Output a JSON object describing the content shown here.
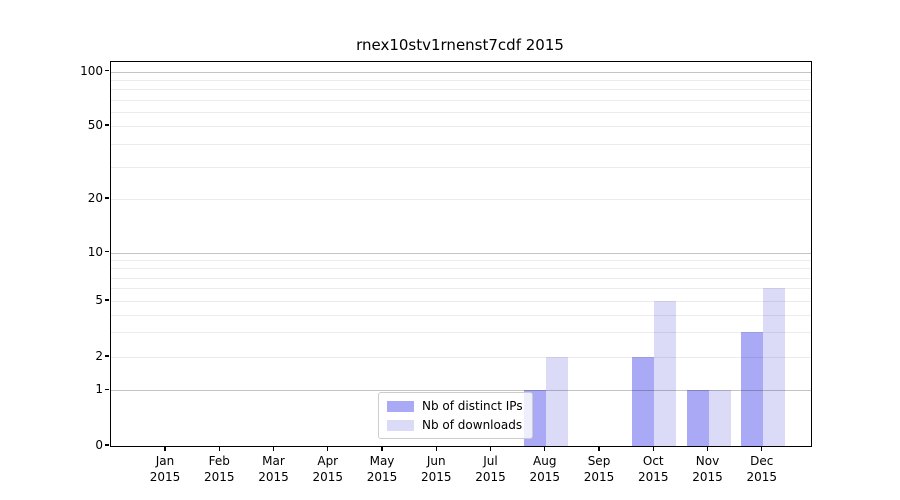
{
  "chart_data": {
    "type": "bar",
    "title": "rnex10stv1rnenst7cdf 2015",
    "categories": [
      "Jan 2015",
      "Feb 2015",
      "Mar 2015",
      "Apr 2015",
      "May 2015",
      "Jun 2015",
      "Jul 2015",
      "Aug 2015",
      "Sep 2015",
      "Oct 2015",
      "Nov 2015",
      "Dec 2015"
    ],
    "series": [
      {
        "name": "Nb of distinct IPs",
        "color": "#a9a9f6",
        "values": [
          0,
          0,
          0,
          0,
          0,
          0,
          0,
          1,
          0,
          2,
          1,
          3
        ]
      },
      {
        "name": "Nb of downloads",
        "color": "#dbdbf8",
        "values": [
          0,
          0,
          0,
          0,
          0,
          0,
          0,
          2,
          0,
          5,
          1,
          6
        ]
      }
    ],
    "xlabel": "",
    "ylabel": "",
    "yscale": "symlog",
    "ylim": [
      0,
      114
    ],
    "yticks_labeled": [
      0,
      1,
      2,
      5,
      10,
      20,
      50,
      100
    ],
    "yticks_major_grid": [
      1,
      10,
      100
    ],
    "yticks_minor_grid": [
      2,
      3,
      4,
      5,
      6,
      7,
      8,
      9,
      20,
      30,
      40,
      50,
      60,
      70,
      80,
      90
    ],
    "grid": "horizontal",
    "legend_position": "lower center-left inside plot",
    "colors": {
      "axis": "#000000",
      "text": "#000000",
      "major_grid": "#c6c6c6",
      "minor_grid": "#ececec",
      "background": "#ffffff"
    }
  }
}
